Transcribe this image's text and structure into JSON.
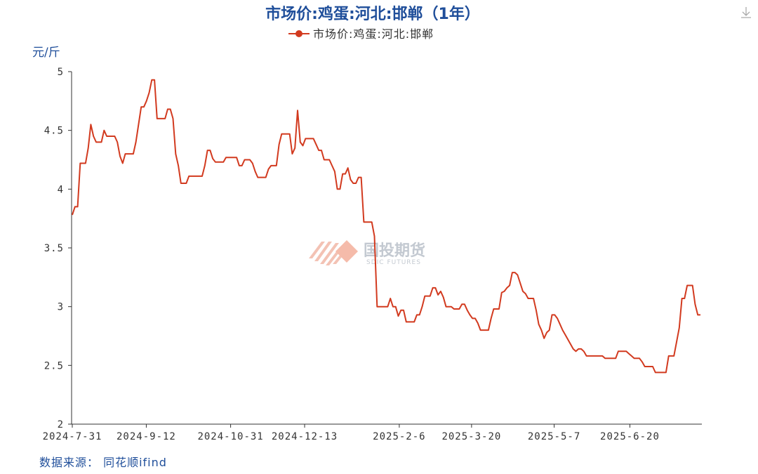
{
  "chart_data": {
    "type": "line",
    "title": "市场价:鸡蛋:河北:邯郸（1年）",
    "ylabel": "元/斤",
    "ylim": [
      2,
      5
    ],
    "yticks": [
      "2",
      "2.5",
      "3",
      "3.5",
      "4",
      "4.5",
      "5"
    ],
    "xticks": [
      "2024-7-31",
      "2024-9-12",
      "2024-10-31",
      "2024-12-13",
      "2025-2-6",
      "2025-3-20",
      "2025-5-7",
      "2025-6-20"
    ],
    "legend_position": "top-center",
    "grid": false,
    "series": [
      {
        "name": "市场价:鸡蛋:河北:邯郸",
        "color": "#d23a1f",
        "x_start": "2024-7-31",
        "x_end": "2025-7-31",
        "values": [
          3.78,
          3.85,
          3.85,
          4.22,
          4.22,
          4.22,
          4.35,
          4.55,
          4.45,
          4.4,
          4.4,
          4.4,
          4.5,
          4.45,
          4.45,
          4.45,
          4.45,
          4.4,
          4.28,
          4.22,
          4.3,
          4.3,
          4.3,
          4.3,
          4.4,
          4.55,
          4.7,
          4.7,
          4.75,
          4.82,
          4.93,
          4.93,
          4.6,
          4.6,
          4.6,
          4.6,
          4.68,
          4.68,
          4.6,
          4.3,
          4.2,
          4.05,
          4.05,
          4.05,
          4.11,
          4.11,
          4.11,
          4.11,
          4.11,
          4.11,
          4.2,
          4.33,
          4.33,
          4.26,
          4.23,
          4.23,
          4.23,
          4.23,
          4.27,
          4.27,
          4.27,
          4.27,
          4.27,
          4.2,
          4.2,
          4.25,
          4.25,
          4.25,
          4.22,
          4.15,
          4.1,
          4.1,
          4.1,
          4.1,
          4.17,
          4.2,
          4.2,
          4.2,
          4.38,
          4.47,
          4.47,
          4.47,
          4.47,
          4.3,
          4.35,
          4.67,
          4.4,
          4.37,
          4.43,
          4.43,
          4.43,
          4.43,
          4.38,
          4.33,
          4.33,
          4.25,
          4.25,
          4.25,
          4.2,
          4.15,
          4.0,
          4.0,
          4.13,
          4.13,
          4.18,
          4.08,
          4.05,
          4.05,
          4.1,
          4.1,
          3.72,
          3.72,
          3.72,
          3.72,
          3.6,
          3.0,
          3.0,
          3.0,
          3.0,
          3.0,
          3.07,
          3.0,
          3.0,
          2.92,
          2.97,
          2.97,
          2.87,
          2.87,
          2.87,
          2.87,
          2.93,
          2.93,
          3.0,
          3.09,
          3.09,
          3.09,
          3.16,
          3.16,
          3.1,
          3.13,
          3.08,
          3.0,
          3.0,
          3.0,
          2.98,
          2.98,
          2.98,
          3.02,
          3.02,
          2.97,
          2.93,
          2.9,
          2.9,
          2.86,
          2.8,
          2.8,
          2.8,
          2.8,
          2.9,
          2.98,
          2.98,
          2.98,
          3.12,
          3.13,
          3.16,
          3.18,
          3.29,
          3.29,
          3.27,
          3.2,
          3.13,
          3.11,
          3.07,
          3.07,
          3.07,
          2.97,
          2.85,
          2.8,
          2.73,
          2.78,
          2.8,
          2.93,
          2.93,
          2.9,
          2.85,
          2.8,
          2.76,
          2.72,
          2.68,
          2.64,
          2.62,
          2.64,
          2.64,
          2.62,
          2.58,
          2.58,
          2.58,
          2.58,
          2.58,
          2.58,
          2.58,
          2.56,
          2.56,
          2.56,
          2.56,
          2.56,
          2.62,
          2.62,
          2.62,
          2.62,
          2.6,
          2.58,
          2.56,
          2.56,
          2.56,
          2.53,
          2.49,
          2.49,
          2.49,
          2.49,
          2.44,
          2.44,
          2.44,
          2.44,
          2.44,
          2.58,
          2.58,
          2.58,
          2.7,
          2.82,
          3.07,
          3.07,
          3.18,
          3.18,
          3.18,
          3.02,
          2.93,
          2.93
        ]
      }
    ]
  },
  "watermark": {
    "name": "国投期货",
    "sub": "SDIC FUTURES"
  },
  "source": "数据来源： 同花顺ifind",
  "icons": {
    "download": "download-icon"
  }
}
